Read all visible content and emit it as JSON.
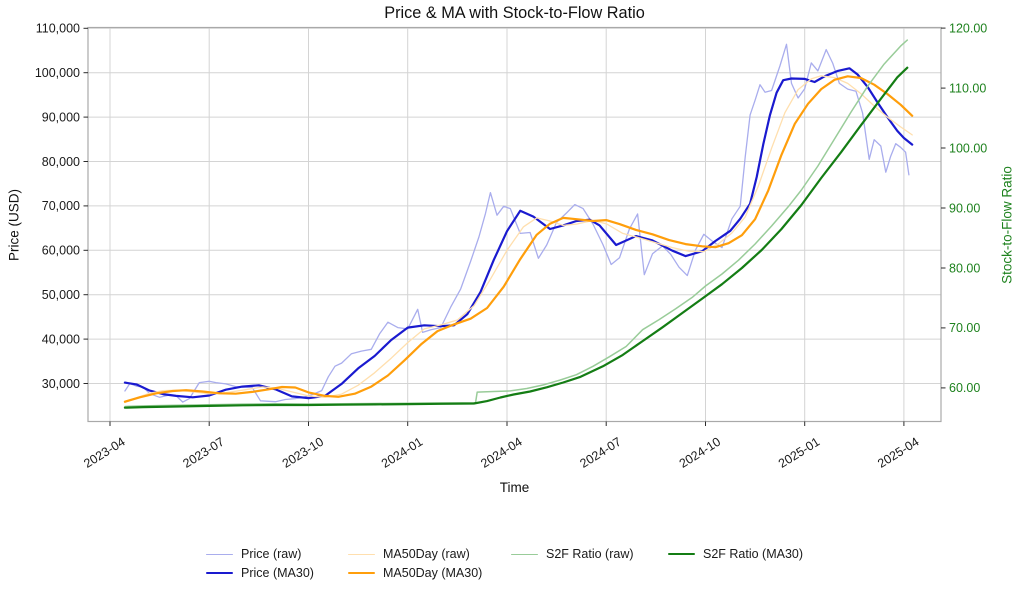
{
  "title": "Price & MA with Stock-to-Flow Ratio",
  "axes": {
    "x": {
      "label": "Time",
      "tick_labels": [
        "2023-04",
        "2023-07",
        "2023-10",
        "2024-01",
        "2024-04",
        "2024-07",
        "2024-10",
        "2025-01",
        "2025-04"
      ],
      "tick_months": [
        0,
        3,
        6,
        9,
        12,
        15,
        18,
        21,
        24
      ]
    },
    "y_left": {
      "label": "Price (USD)",
      "tick_values": [
        30000,
        40000,
        50000,
        60000,
        70000,
        80000,
        90000,
        100000,
        110000
      ],
      "tick_labels": [
        "30,000",
        "40,000",
        "50,000",
        "60,000",
        "70,000",
        "80,000",
        "90,000",
        "100,000",
        "110,000"
      ],
      "range": [
        21440,
        110180
      ],
      "color": "#1a1a1a"
    },
    "y_right": {
      "label": "Stock-to-Flow Ratio",
      "tick_values": [
        60,
        70,
        80,
        90,
        100,
        110,
        120
      ],
      "tick_labels": [
        "60.00",
        "70.00",
        "80.00",
        "90.00",
        "100.00",
        "110.00",
        "120.00"
      ],
      "range": [
        54.4,
        120.1
      ],
      "color": "#1e821e"
    }
  },
  "chart_data": {
    "type": "line",
    "title": "Price & MA with Stock-to-Flow Ratio",
    "xlabel": "Time",
    "ylabel_left": "Price (USD)",
    "ylabel_right": "Stock-to-Flow Ratio",
    "x_unit": "months since 2023-04-01",
    "x_range": [
      -0.665,
      25.12
    ],
    "grid": true,
    "series": [
      {
        "name": "Price (raw)",
        "axis": "left",
        "color": "#a9aded",
        "width": 1.3,
        "x": [
          0.45,
          0.6,
          0.8,
          1.0,
          1.2,
          1.5,
          1.8,
          2.0,
          2.2,
          2.4,
          2.7,
          3.0,
          3.2,
          3.5,
          3.8,
          4.0,
          4.3,
          4.55,
          4.8,
          5.0,
          5.3,
          5.6,
          5.9,
          6.15,
          6.4,
          6.6,
          6.8,
          7.0,
          7.3,
          7.6,
          7.9,
          8.15,
          8.4,
          8.7,
          9.0,
          9.3,
          9.45,
          9.7,
          10.0,
          10.3,
          10.6,
          10.9,
          11.15,
          11.35,
          11.5,
          11.7,
          11.9,
          12.1,
          12.4,
          12.7,
          12.95,
          13.2,
          13.5,
          13.8,
          14.05,
          14.3,
          14.6,
          14.9,
          15.15,
          15.4,
          15.7,
          15.95,
          16.15,
          16.4,
          16.7,
          16.95,
          17.2,
          17.45,
          17.7,
          17.95,
          18.2,
          18.5,
          18.8,
          19.05,
          19.2,
          19.35,
          19.5,
          19.65,
          19.8,
          20.0,
          20.25,
          20.45,
          20.6,
          20.8,
          21.0,
          21.2,
          21.4,
          21.65,
          21.85,
          22.05,
          22.3,
          22.55,
          22.75,
          22.95,
          23.1,
          23.3,
          23.45,
          23.6,
          23.75,
          23.9,
          24.05,
          24.15
        ],
        "y": [
          28300,
          30000,
          29400,
          29200,
          27700,
          26900,
          27400,
          27200,
          25800,
          26600,
          30200,
          30500,
          30200,
          29900,
          29300,
          29200,
          29100,
          26100,
          26000,
          25900,
          26400,
          26600,
          27000,
          27600,
          28400,
          31500,
          33900,
          34600,
          36700,
          37300,
          37700,
          41200,
          43800,
          42600,
          42300,
          46700,
          41500,
          42100,
          42600,
          47200,
          51300,
          57500,
          63000,
          68300,
          73000,
          67900,
          69900,
          69400,
          63800,
          64000,
          58200,
          61200,
          66300,
          68400,
          70300,
          69400,
          65900,
          61300,
          56800,
          58300,
          64800,
          68200,
          54500,
          59200,
          61000,
          59100,
          56200,
          54300,
          60100,
          63600,
          62100,
          60600,
          67100,
          69900,
          81000,
          90500,
          93800,
          97300,
          95600,
          96000,
          101500,
          106400,
          97600,
          94300,
          96400,
          102200,
          100400,
          105200,
          102100,
          97600,
          96300,
          95800,
          90900,
          80500,
          84900,
          83500,
          77600,
          81200,
          84000,
          83200,
          82100,
          77000
        ]
      },
      {
        "name": "Price (MA30)",
        "axis": "left",
        "color": "#1a1acf",
        "width": 2.2,
        "x": [
          0.45,
          0.8,
          1.2,
          1.6,
          2.0,
          2.5,
          3.0,
          3.5,
          4.0,
          4.5,
          5.0,
          5.5,
          6.0,
          6.5,
          7.0,
          7.5,
          8.0,
          8.5,
          9.0,
          9.5,
          10.0,
          10.4,
          10.8,
          11.2,
          11.6,
          12.0,
          12.4,
          12.8,
          13.3,
          13.7,
          14.1,
          14.5,
          14.8,
          15.3,
          15.9,
          16.4,
          17.0,
          17.4,
          17.9,
          18.3,
          18.75,
          19.05,
          19.35,
          19.55,
          19.75,
          19.95,
          20.15,
          20.35,
          20.6,
          21.0,
          21.3,
          21.6,
          22.0,
          22.35,
          22.6,
          22.9,
          23.2,
          23.5,
          23.8,
          24.0,
          24.25
        ],
        "y": [
          30200,
          29800,
          28400,
          27600,
          27200,
          26900,
          27300,
          28600,
          29300,
          29600,
          28700,
          27100,
          26700,
          27200,
          29900,
          33400,
          36200,
          39800,
          42600,
          43100,
          42900,
          43100,
          45600,
          50600,
          57800,
          64300,
          68900,
          67600,
          64800,
          65600,
          66600,
          66900,
          65600,
          61200,
          63200,
          62200,
          59900,
          58700,
          59800,
          62100,
          64400,
          67100,
          70500,
          76500,
          84000,
          90500,
          95500,
          98300,
          98700,
          98600,
          97900,
          99200,
          100400,
          101000,
          99600,
          96800,
          93300,
          90000,
          86900,
          85300,
          83800
        ]
      },
      {
        "name": "MA50Day (raw)",
        "axis": "left",
        "color": "#ffdfae",
        "width": 1.3,
        "x": [
          0.45,
          0.8,
          1.2,
          1.6,
          2.0,
          2.5,
          3.0,
          3.5,
          4.0,
          4.6,
          5.0,
          5.5,
          6.0,
          6.5,
          7.0,
          7.5,
          8.0,
          8.5,
          9.0,
          9.5,
          10.0,
          10.5,
          11.0,
          11.5,
          12.0,
          12.5,
          12.9,
          13.3,
          13.7,
          14.1,
          14.6,
          15.0,
          15.5,
          16.0,
          16.5,
          17.0,
          17.5,
          17.95,
          18.4,
          18.8,
          19.2,
          19.6,
          20.0,
          20.4,
          20.8,
          21.2,
          21.5,
          21.9,
          22.3,
          22.7,
          23.1,
          23.5,
          23.9,
          24.25
        ],
        "y": [
          25700,
          26800,
          27800,
          28400,
          28500,
          28100,
          27700,
          27900,
          28500,
          29200,
          29000,
          28100,
          27200,
          26900,
          27600,
          29600,
          32400,
          35700,
          39200,
          42300,
          43200,
          44300,
          47500,
          53500,
          60000,
          65300,
          67300,
          66600,
          65600,
          65900,
          66700,
          66000,
          63800,
          62800,
          61700,
          60600,
          59800,
          59700,
          61500,
          63900,
          67500,
          74500,
          83000,
          91000,
          96200,
          98600,
          99300,
          98900,
          97600,
          95300,
          92500,
          90000,
          87800,
          86000
        ]
      },
      {
        "name": "MA50Day (MA30)",
        "axis": "left",
        "color": "#ff9e0b",
        "width": 2.2,
        "x": [
          0.45,
          0.9,
          1.4,
          1.9,
          2.3,
          2.8,
          3.3,
          3.8,
          4.3,
          4.8,
          5.2,
          5.6,
          6.0,
          6.5,
          6.9,
          7.4,
          7.9,
          8.4,
          8.9,
          9.4,
          9.9,
          10.4,
          10.9,
          11.4,
          11.9,
          12.4,
          12.9,
          13.3,
          13.7,
          14.1,
          14.6,
          15.0,
          15.4,
          15.9,
          16.4,
          16.9,
          17.4,
          17.9,
          18.3,
          18.7,
          19.1,
          19.5,
          19.9,
          20.3,
          20.7,
          21.1,
          21.5,
          21.9,
          22.3,
          22.7,
          23.1,
          23.5,
          23.9,
          24.25
        ],
        "y": [
          25900,
          26900,
          27800,
          28300,
          28500,
          28200,
          27800,
          27700,
          28100,
          28700,
          29200,
          29100,
          28000,
          27200,
          27000,
          27700,
          29300,
          31800,
          35200,
          38800,
          41800,
          43300,
          44600,
          47000,
          51800,
          58000,
          63500,
          66000,
          67300,
          67000,
          66600,
          66800,
          65900,
          64600,
          63600,
          62300,
          61400,
          60900,
          60700,
          61600,
          63400,
          67000,
          73500,
          81500,
          88500,
          93000,
          96300,
          98400,
          99200,
          98800,
          97300,
          95200,
          92800,
          90300
        ]
      },
      {
        "name": "S2F Ratio (raw)",
        "axis": "right",
        "color": "#99cc99",
        "width": 1.5,
        "x": [
          0.45,
          1,
          2,
          3,
          4,
          5,
          6,
          7,
          8,
          9,
          10,
          10.9,
          11.05,
          11.1,
          11.6,
          12.1,
          12.6,
          13.1,
          13.6,
          14.1,
          14.6,
          15.1,
          15.6,
          16.1,
          16.6,
          17.1,
          17.6,
          18.0,
          18.5,
          19.0,
          19.5,
          20.0,
          20.5,
          20.9,
          21.4,
          21.9,
          22.4,
          22.9,
          23.4,
          23.9,
          24.1
        ],
        "y": [
          56.9,
          57.0,
          57.1,
          57.2,
          57.3,
          57.35,
          57.3,
          57.35,
          57.4,
          57.45,
          57.5,
          57.5,
          57.5,
          59.3,
          59.4,
          59.5,
          59.9,
          60.5,
          61.3,
          62.2,
          63.6,
          65.2,
          66.9,
          69.7,
          71.4,
          73.2,
          75.1,
          77.0,
          79.0,
          81.3,
          84.0,
          87.0,
          90.2,
          93.0,
          97.0,
          101.5,
          106.0,
          110.3,
          114.0,
          117.0,
          118.0
        ]
      },
      {
        "name": "S2F Ratio (MA30)",
        "axis": "right",
        "color": "#147d14",
        "width": 2.2,
        "x": [
          0.45,
          1,
          2,
          3,
          4,
          5,
          6,
          7,
          8,
          9,
          10,
          11,
          11.4,
          11.8,
          12.2,
          12.7,
          13.2,
          13.7,
          14.2,
          14.9,
          15.5,
          16.1,
          16.7,
          17.3,
          17.9,
          18.5,
          19.1,
          19.7,
          20.3,
          20.9,
          21.5,
          22.1,
          22.7,
          23.3,
          23.8,
          24.1
        ],
        "y": [
          56.7,
          56.8,
          56.9,
          57.0,
          57.1,
          57.15,
          57.15,
          57.2,
          57.25,
          57.3,
          57.35,
          57.4,
          57.8,
          58.4,
          58.9,
          59.4,
          60.1,
          60.9,
          61.8,
          63.6,
          65.5,
          67.8,
          70.1,
          72.5,
          74.9,
          77.3,
          80.0,
          83.0,
          86.5,
          90.5,
          95.0,
          99.3,
          103.8,
          108.2,
          111.8,
          113.4
        ]
      }
    ]
  },
  "legend": {
    "order": [
      0,
      2,
      4,
      5,
      1,
      3
    ]
  }
}
